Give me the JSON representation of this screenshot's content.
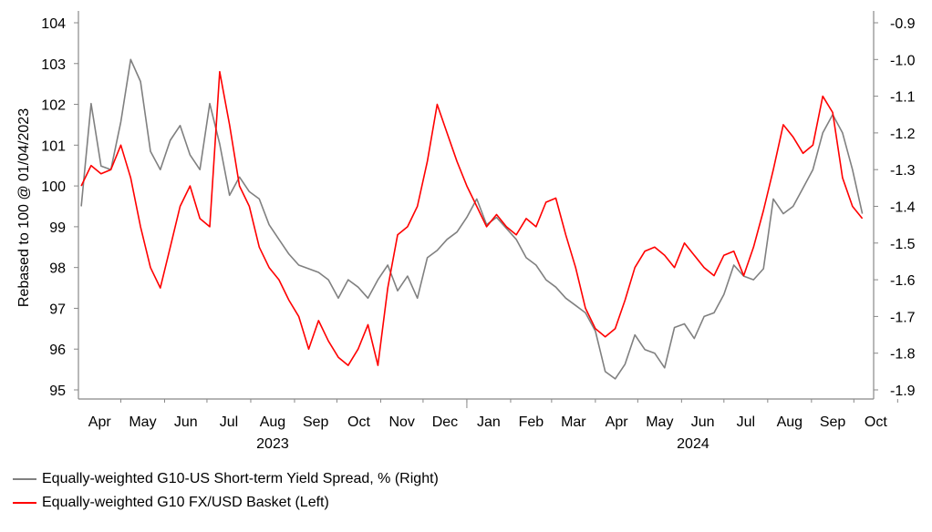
{
  "chart_data": {
    "type": "line",
    "title": "",
    "left_axis": {
      "label": "Rebased to 100 @ 01/04/2023",
      "ylim": [
        95,
        104
      ],
      "ticks": [
        95,
        96,
        97,
        98,
        99,
        100,
        101,
        102,
        103,
        104
      ]
    },
    "right_axis": {
      "label": "",
      "ylim": [
        -1.9,
        -0.9
      ],
      "ticks": [
        "-1.9",
        "-1.8",
        "-1.7",
        "-1.6",
        "-1.5",
        "-1.4",
        "-1.3",
        "-1.2",
        "-1.1",
        "-1.0",
        "-0.9"
      ]
    },
    "x_axis": {
      "months": [
        "Apr",
        "May",
        "Jun",
        "Jul",
        "Aug",
        "Sep",
        "Oct",
        "Nov",
        "Dec",
        "Jan",
        "Feb",
        "Mar",
        "Apr",
        "May",
        "Jun",
        "Jul",
        "Aug",
        "Sep",
        "Oct"
      ],
      "years": [
        "2023",
        "2024"
      ]
    },
    "legend_placement": "bottom-left",
    "grid": false,
    "series": [
      {
        "name": "Equally-weighted G10-US Short-term Yield Spread, % (Right)",
        "axis": "right",
        "color": "#808080",
        "x": [
          "2023-04-03",
          "2023-04-10",
          "2023-04-17",
          "2023-04-24",
          "2023-05-01",
          "2023-05-08",
          "2023-05-15",
          "2023-05-22",
          "2023-05-29",
          "2023-06-05",
          "2023-06-12",
          "2023-06-19",
          "2023-06-26",
          "2023-07-03",
          "2023-07-10",
          "2023-07-17",
          "2023-07-24",
          "2023-07-31",
          "2023-08-07",
          "2023-08-14",
          "2023-08-21",
          "2023-08-28",
          "2023-09-04",
          "2023-09-11",
          "2023-09-18",
          "2023-09-25",
          "2023-10-02",
          "2023-10-09",
          "2023-10-16",
          "2023-10-23",
          "2023-10-30",
          "2023-11-06",
          "2023-11-13",
          "2023-11-20",
          "2023-11-27",
          "2023-12-04",
          "2023-12-11",
          "2023-12-18",
          "2023-12-25",
          "2024-01-01",
          "2024-01-08",
          "2024-01-15",
          "2024-01-22",
          "2024-01-29",
          "2024-02-05",
          "2024-02-12",
          "2024-02-19",
          "2024-02-26",
          "2024-03-04",
          "2024-03-11",
          "2024-03-18",
          "2024-03-25",
          "2024-04-01",
          "2024-04-08",
          "2024-04-15",
          "2024-04-22",
          "2024-04-29",
          "2024-05-06",
          "2024-05-13",
          "2024-05-20",
          "2024-05-27",
          "2024-06-03",
          "2024-06-10",
          "2024-06-17",
          "2024-06-24",
          "2024-07-01",
          "2024-07-08",
          "2024-07-15",
          "2024-07-22",
          "2024-07-29",
          "2024-08-05",
          "2024-08-12",
          "2024-08-19",
          "2024-08-26",
          "2024-09-02",
          "2024-09-09",
          "2024-09-16",
          "2024-09-23",
          "2024-09-30",
          "2024-10-07"
        ],
        "values": [
          -1.4,
          -1.12,
          -1.29,
          -1.3,
          -1.17,
          -1.0,
          -1.06,
          -1.25,
          -1.3,
          -1.22,
          -1.18,
          -1.26,
          -1.3,
          -1.12,
          -1.23,
          -1.37,
          -1.32,
          -1.36,
          -1.38,
          -1.45,
          -1.49,
          -1.53,
          -1.56,
          -1.57,
          -1.58,
          -1.6,
          -1.65,
          -1.6,
          -1.62,
          -1.65,
          -1.6,
          -1.56,
          -1.63,
          -1.59,
          -1.65,
          -1.54,
          -1.52,
          -1.49,
          -1.47,
          -1.43,
          -1.38,
          -1.45,
          -1.43,
          -1.46,
          -1.49,
          -1.54,
          -1.56,
          -1.6,
          -1.62,
          -1.65,
          -1.67,
          -1.69,
          -1.74,
          -1.85,
          -1.87,
          -1.83,
          -1.75,
          -1.79,
          -1.8,
          -1.84,
          -1.73,
          -1.72,
          -1.76,
          -1.7,
          -1.69,
          -1.64,
          -1.56,
          -1.59,
          -1.6,
          -1.57,
          -1.38,
          -1.42,
          -1.4,
          -1.35,
          -1.3,
          -1.2,
          -1.15,
          -1.2,
          -1.3,
          -1.42
        ]
      },
      {
        "name": "Equally-weighted G10 FX/USD Basket (Left)",
        "axis": "left",
        "color": "#ff0000",
        "x": [
          "2023-04-03",
          "2023-04-10",
          "2023-04-17",
          "2023-04-24",
          "2023-05-01",
          "2023-05-08",
          "2023-05-15",
          "2023-05-22",
          "2023-05-29",
          "2023-06-05",
          "2023-06-12",
          "2023-06-19",
          "2023-06-26",
          "2023-07-03",
          "2023-07-10",
          "2023-07-17",
          "2023-07-24",
          "2023-07-31",
          "2023-08-07",
          "2023-08-14",
          "2023-08-21",
          "2023-08-28",
          "2023-09-04",
          "2023-09-11",
          "2023-09-18",
          "2023-09-25",
          "2023-10-02",
          "2023-10-09",
          "2023-10-16",
          "2023-10-23",
          "2023-10-30",
          "2023-11-06",
          "2023-11-13",
          "2023-11-20",
          "2023-11-27",
          "2023-12-04",
          "2023-12-11",
          "2023-12-18",
          "2023-12-25",
          "2024-01-01",
          "2024-01-08",
          "2024-01-15",
          "2024-01-22",
          "2024-01-29",
          "2024-02-05",
          "2024-02-12",
          "2024-02-19",
          "2024-02-26",
          "2024-03-04",
          "2024-03-11",
          "2024-03-18",
          "2024-03-25",
          "2024-04-01",
          "2024-04-08",
          "2024-04-15",
          "2024-04-22",
          "2024-04-29",
          "2024-05-06",
          "2024-05-13",
          "2024-05-20",
          "2024-05-27",
          "2024-06-03",
          "2024-06-10",
          "2024-06-17",
          "2024-06-24",
          "2024-07-01",
          "2024-07-08",
          "2024-07-15",
          "2024-07-22",
          "2024-07-29",
          "2024-08-05",
          "2024-08-12",
          "2024-08-19",
          "2024-08-26",
          "2024-09-02",
          "2024-09-09",
          "2024-09-16",
          "2024-09-23",
          "2024-09-30",
          "2024-10-07"
        ],
        "values": [
          100.0,
          100.5,
          100.3,
          100.4,
          101.0,
          100.2,
          99.0,
          98.0,
          97.5,
          98.5,
          99.5,
          100.0,
          99.2,
          99.0,
          102.8,
          101.5,
          100.0,
          99.5,
          98.5,
          98.0,
          97.7,
          97.2,
          96.8,
          96.0,
          96.7,
          96.2,
          95.8,
          95.6,
          96.0,
          96.6,
          95.6,
          97.5,
          98.8,
          99.0,
          99.5,
          100.6,
          102.0,
          101.3,
          100.6,
          100.0,
          99.5,
          99.0,
          99.3,
          99.0,
          98.8,
          99.2,
          99.0,
          99.6,
          99.7,
          98.8,
          98.0,
          97.0,
          96.5,
          96.3,
          96.5,
          97.2,
          98.0,
          98.4,
          98.5,
          98.3,
          98.0,
          98.6,
          98.3,
          98.0,
          97.8,
          98.3,
          98.4,
          97.8,
          98.5,
          99.4,
          100.4,
          101.5,
          101.2,
          100.8,
          101.0,
          102.2,
          101.8,
          100.2,
          99.5,
          99.2
        ]
      }
    ]
  }
}
